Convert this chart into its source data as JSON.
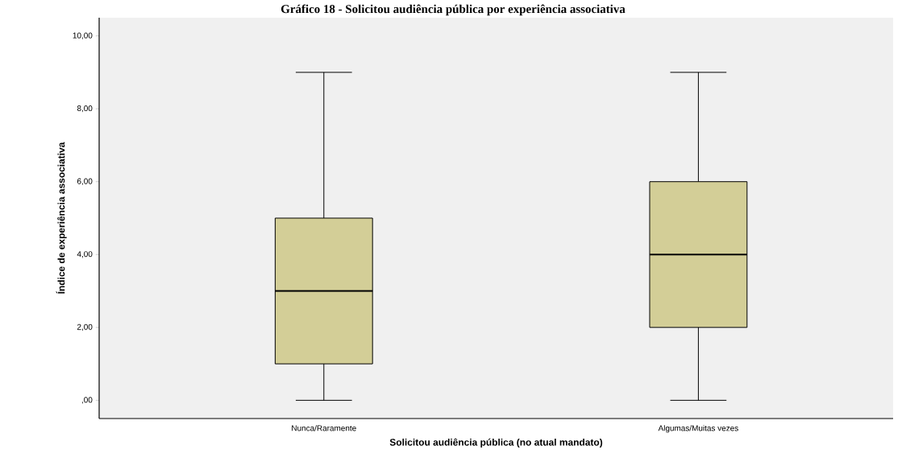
{
  "chart_data": {
    "type": "box",
    "title": "Gráfico 18 - Solicitou audiência pública por experiência associativa",
    "xlabel": "Solicitou audiência pública (no atual mandato)",
    "ylabel": "Índice de experiência associativa",
    "categories": [
      "Nunca/Raramente",
      "Algumas/Muitas vezes"
    ],
    "color": "#d3ce97",
    "boxes": [
      {
        "low": 0,
        "q1": 1,
        "median": 3,
        "q3": 5,
        "high": 9
      },
      {
        "low": 0,
        "q1": 2,
        "median": 4,
        "q3": 6,
        "high": 9
      }
    ],
    "ylim": [
      -0.5,
      10.5
    ],
    "yticks": [
      {
        "value": 0,
        "label": ",00"
      },
      {
        "value": 2,
        "label": "2,00"
      },
      {
        "value": 4,
        "label": "4,00"
      },
      {
        "value": 6,
        "label": "6,00"
      },
      {
        "value": 8,
        "label": "8,00"
      },
      {
        "value": 10,
        "label": "10,00"
      }
    ],
    "grid": false
  }
}
